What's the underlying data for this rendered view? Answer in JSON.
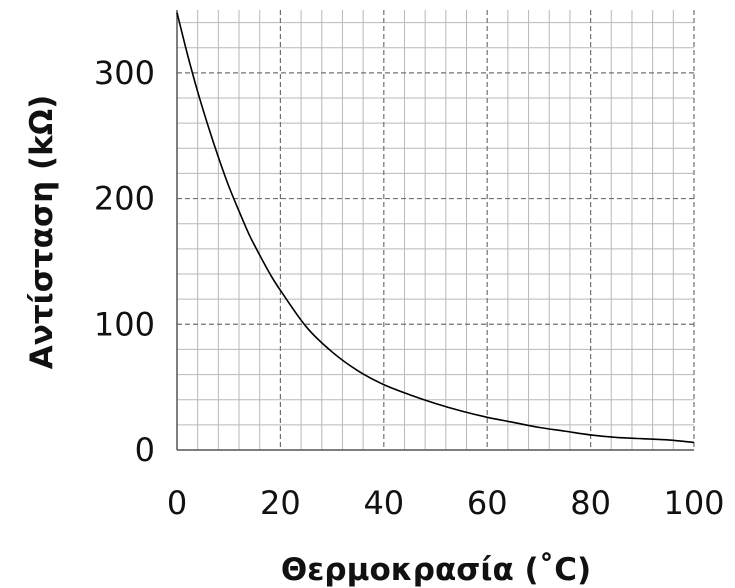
{
  "chart_data": {
    "type": "line",
    "title": "",
    "xlabel": "Θερμοκρασία (˚C)",
    "ylabel": "Αντίσταση (kΩ)",
    "xlim": [
      0,
      100
    ],
    "ylim": [
      0,
      350
    ],
    "x_ticks": [
      0,
      20,
      40,
      60,
      80,
      100
    ],
    "y_ticks": [
      0,
      100,
      200,
      300
    ],
    "x_tick_labels": [
      "0",
      "20",
      "40",
      "60",
      "80",
      "100"
    ],
    "y_tick_labels": [
      "0",
      "100",
      "200",
      "300"
    ],
    "grid": {
      "major": true,
      "minor": true,
      "x_minor_step": 4,
      "y_minor_step": 20
    },
    "legend": "none",
    "line_color": "#000000",
    "series": [
      {
        "x": [
          0,
          2,
          4,
          6,
          8,
          10,
          12,
          14,
          16,
          18,
          20,
          25,
          30,
          35,
          40,
          45,
          50,
          55,
          60,
          65,
          70,
          75,
          80,
          85,
          90,
          95,
          100
        ],
        "y": [
          348,
          315,
          285,
          258,
          233,
          210,
          190,
          171,
          155,
          140,
          127,
          98,
          78,
          63,
          52,
          44,
          37,
          31,
          26,
          22,
          18,
          15,
          12,
          10,
          9,
          8,
          6
        ]
      }
    ]
  }
}
